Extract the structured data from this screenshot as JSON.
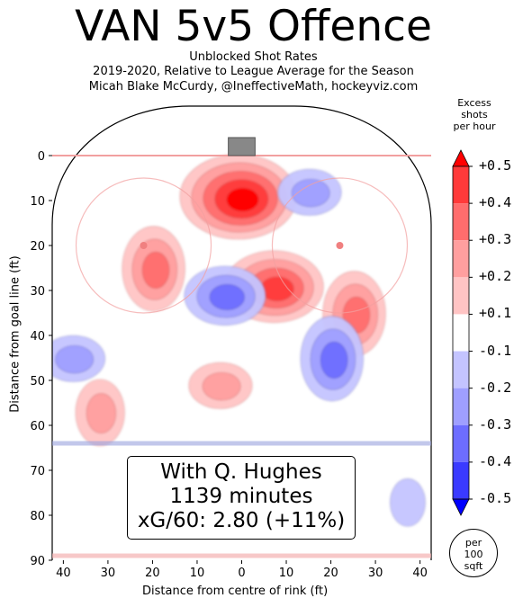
{
  "title": "VAN 5v5 Offence",
  "subtitle_lines": [
    "Unblocked Shot Rates",
    "2019-2020, Relative to League Average for the Season",
    "Micah Blake McCurdy, @IneffectiveMath, hockeyviz.com"
  ],
  "annotation": {
    "line1": "With Q. Hughes",
    "line2": "1139 minutes",
    "line3": "xG/60: 2.80 (+11%)"
  },
  "colorbar": {
    "title_lines": [
      "Excess",
      "shots",
      "per hour"
    ],
    "ticks": [
      "+0.5",
      "+0.4",
      "+0.3",
      "+0.2",
      "+0.1",
      "-0.1",
      "-0.2",
      "-0.3",
      "-0.4",
      "-0.5"
    ],
    "colors": [
      "#ff0000",
      "#ff3a3a",
      "#ff6d6d",
      "#ff9f9f",
      "#ffc4c4",
      "#ffffff",
      "#c4c4ff",
      "#9f9fff",
      "#6d6dff",
      "#3a3aff",
      "#0000ff"
    ]
  },
  "per_circle_lines": [
    "per",
    "100",
    "sqft"
  ],
  "chart_data": {
    "type": "heatmap",
    "xlabel": "Distance from centre of rink (ft)",
    "ylabel": "Distance from goal line (ft)",
    "xlim": [
      -42.5,
      42.5
    ],
    "ylim": [
      90,
      -11
    ],
    "x_ticks": [
      "40",
      "30",
      "20",
      "10",
      "0",
      "10",
      "20",
      "30",
      "40"
    ],
    "x_tick_values": [
      -40,
      -30,
      -20,
      -10,
      0,
      10,
      20,
      30,
      40
    ],
    "y_ticks": [
      "0",
      "10",
      "20",
      "30",
      "40",
      "50",
      "60",
      "70",
      "80",
      "90"
    ],
    "y_tick_values": [
      0,
      10,
      20,
      30,
      40,
      50,
      60,
      70,
      80,
      90
    ],
    "regions": [
      {
        "x": -1,
        "y": 9,
        "value": 0.5
      },
      {
        "x": -20,
        "y": 25,
        "value": 0.3
      },
      {
        "x": 7,
        "y": 29,
        "value": 0.4
      },
      {
        "x": 25,
        "y": 35,
        "value": 0.3
      },
      {
        "x": -5,
        "y": 51,
        "value": 0.2
      },
      {
        "x": -32,
        "y": 57,
        "value": 0.2
      },
      {
        "x": -4,
        "y": 31,
        "value": -0.3
      },
      {
        "x": 20,
        "y": 45,
        "value": -0.3
      },
      {
        "x": -38,
        "y": 45,
        "value": -0.2
      },
      {
        "x": 37,
        "y": 77,
        "value": -0.1
      },
      {
        "x": 15,
        "y": 8,
        "value": -0.2
      }
    ]
  }
}
